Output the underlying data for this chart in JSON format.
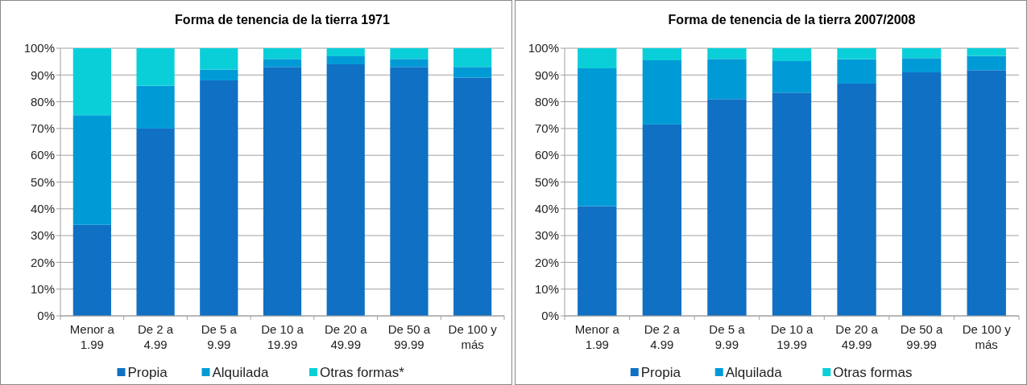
{
  "chart_data": [
    {
      "type": "bar",
      "title": "Forma de tenencia de la tierra 1971",
      "stacked": true,
      "categories": [
        "Menor a 1.99",
        "De 2 a 4.99",
        "De 5 a 9.99",
        "De 10 a 19.99",
        "De 20 a 49.99",
        "De 50 a 99.99",
        "De 100 y más"
      ],
      "series": [
        {
          "name": "Propia",
          "color": "#1070c4",
          "values": [
            34,
            70,
            88,
            93,
            94,
            93,
            89
          ]
        },
        {
          "name": "Alquilada",
          "color": "#009bd6",
          "values": [
            41,
            16,
            4,
            3,
            3,
            3,
            4
          ]
        },
        {
          "name": "Otras formas*",
          "color": "#0bcfd8",
          "values": [
            25,
            14,
            8,
            4,
            3,
            4,
            7
          ]
        }
      ],
      "ylim": [
        0,
        100
      ],
      "yticks": [
        {
          "value": 0,
          "label": "0%"
        },
        {
          "value": 10,
          "label": "10%"
        },
        {
          "value": 20,
          "label": "20%"
        },
        {
          "value": 30,
          "label": "30%"
        },
        {
          "value": 40,
          "label": "40%"
        },
        {
          "value": 50,
          "label": "50%"
        },
        {
          "value": 60,
          "label": "60%"
        },
        {
          "value": 70,
          "label": "70%"
        },
        {
          "value": 80,
          "label": "80%"
        },
        {
          "value": 90,
          "label": "90%"
        },
        {
          "value": 100,
          "label": "100%"
        }
      ],
      "grid": "y",
      "legend": "bottom"
    },
    {
      "type": "bar",
      "title": "Forma de tenencia de la tierra 2007/2008",
      "stacked": true,
      "categories": [
        "Menor a 1.99",
        "De 2 a 4.99",
        "De 5 a 9.99",
        "De 10 a 19.99",
        "De 20 a 49.99",
        "De 50 a 99.99",
        "De 100 y más"
      ],
      "series": [
        {
          "name": "Propia",
          "color": "#1070c4",
          "values": [
            41,
            71.5,
            81,
            83.4,
            86.8,
            91,
            91.8
          ]
        },
        {
          "name": "Alquilada",
          "color": "#009bd6",
          "values": [
            51.5,
            24,
            15,
            11.8,
            9.1,
            5.3,
            5.3
          ]
        },
        {
          "name": "Otras formas",
          "color": "#0bcfd8",
          "values": [
            7.5,
            4.5,
            4,
            4.8,
            4.1,
            3.7,
            2.9
          ]
        }
      ],
      "ylim": [
        0,
        100
      ],
      "yticks": [
        {
          "value": 0,
          "label": "0%"
        },
        {
          "value": 10,
          "label": "10%"
        },
        {
          "value": 20,
          "label": "20%"
        },
        {
          "value": 30,
          "label": "30%"
        },
        {
          "value": 40,
          "label": "40%"
        },
        {
          "value": 50,
          "label": "50%"
        },
        {
          "value": 60,
          "label": "60%"
        },
        {
          "value": 70,
          "label": "70%"
        },
        {
          "value": 80,
          "label": "80%"
        },
        {
          "value": 90,
          "label": "90%"
        },
        {
          "value": 100,
          "label": "100%"
        }
      ],
      "grid": "y",
      "legend": "bottom"
    }
  ]
}
